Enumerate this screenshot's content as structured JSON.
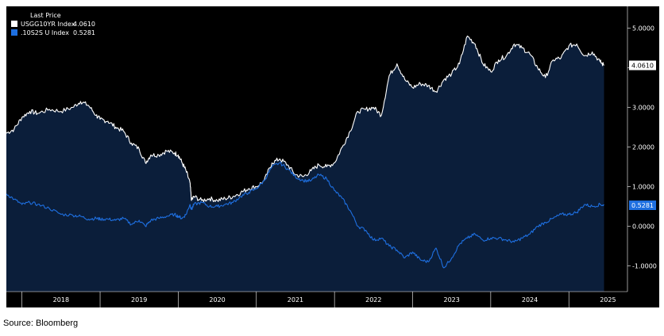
{
  "chart_data": {
    "type": "area",
    "legend_title": "Last Price",
    "legend_position": "top-left",
    "x_ticks": [
      "2018",
      "2019",
      "2020",
      "2021",
      "2022",
      "2023",
      "2024",
      "2025"
    ],
    "x_range": [
      2017.8,
      2025.75
    ],
    "y_ticks": [
      "5.0000",
      "4.0000",
      "3.0000",
      "2.0000",
      "1.0000",
      "0.0000",
      "-1.0000"
    ],
    "y_range": [
      -1.65,
      5.55
    ],
    "colors": {
      "background": "#000000",
      "plot": "#000000",
      "area": "#0b1e3a",
      "axis": "#ffffff"
    },
    "series": [
      {
        "name": "USGG10YR Index",
        "last_value": "4.0610",
        "color": "#ffffff",
        "x": [
          2017.8,
          2017.9,
          2018.0,
          2018.1,
          2018.2,
          2018.35,
          2018.5,
          2018.65,
          2018.75,
          2018.85,
          2018.95,
          2019.0,
          2019.1,
          2019.2,
          2019.3,
          2019.4,
          2019.5,
          2019.58,
          2019.65,
          2019.75,
          2019.85,
          2019.95,
          2020.0,
          2020.05,
          2020.1,
          2020.15,
          2020.17,
          2020.2,
          2020.3,
          2020.4,
          2020.5,
          2020.6,
          2020.7,
          2020.8,
          2020.9,
          2021.0,
          2021.1,
          2021.2,
          2021.3,
          2021.4,
          2021.5,
          2021.6,
          2021.7,
          2021.8,
          2021.9,
          2022.0,
          2022.1,
          2022.2,
          2022.3,
          2022.4,
          2022.5,
          2022.6,
          2022.7,
          2022.8,
          2022.9,
          2023.0,
          2023.1,
          2023.2,
          2023.3,
          2023.4,
          2023.5,
          2023.6,
          2023.7,
          2023.8,
          2023.9,
          2024.0,
          2024.1,
          2024.2,
          2024.3,
          2024.4,
          2024.5,
          2024.6,
          2024.7,
          2024.8,
          2024.9,
          2025.0,
          2025.1,
          2025.2,
          2025.3,
          2025.4,
          2025.45
        ],
        "y": [
          2.35,
          2.45,
          2.75,
          2.9,
          2.85,
          2.95,
          2.9,
          3.0,
          3.15,
          3.05,
          2.8,
          2.7,
          2.65,
          2.5,
          2.4,
          2.1,
          1.95,
          1.6,
          1.8,
          1.8,
          1.9,
          1.85,
          1.8,
          1.6,
          1.4,
          1.1,
          0.65,
          0.75,
          0.65,
          0.7,
          0.65,
          0.7,
          0.75,
          0.85,
          0.95,
          1.0,
          1.15,
          1.6,
          1.7,
          1.55,
          1.3,
          1.25,
          1.4,
          1.55,
          1.5,
          1.6,
          2.0,
          2.4,
          2.9,
          2.95,
          3.0,
          2.8,
          3.8,
          4.1,
          3.7,
          3.5,
          3.6,
          3.55,
          3.4,
          3.7,
          3.85,
          4.1,
          4.8,
          4.6,
          4.1,
          3.9,
          4.2,
          4.3,
          4.6,
          4.5,
          4.35,
          4.0,
          3.75,
          4.2,
          4.25,
          4.55,
          4.6,
          4.3,
          4.4,
          4.15,
          4.06
        ]
      },
      {
        "name": ".10S2S U Index",
        "last_value": "0.5281",
        "color": "#1e6fe0",
        "x": [
          2017.8,
          2017.9,
          2018.0,
          2018.1,
          2018.2,
          2018.35,
          2018.5,
          2018.65,
          2018.75,
          2018.85,
          2018.95,
          2019.0,
          2019.1,
          2019.2,
          2019.3,
          2019.4,
          2019.5,
          2019.58,
          2019.65,
          2019.75,
          2019.85,
          2019.95,
          2020.0,
          2020.05,
          2020.1,
          2020.15,
          2020.17,
          2020.2,
          2020.3,
          2020.4,
          2020.5,
          2020.6,
          2020.7,
          2020.8,
          2020.9,
          2021.0,
          2021.1,
          2021.2,
          2021.3,
          2021.4,
          2021.5,
          2021.6,
          2021.7,
          2021.8,
          2021.9,
          2022.0,
          2022.1,
          2022.2,
          2022.3,
          2022.4,
          2022.5,
          2022.6,
          2022.7,
          2022.8,
          2022.9,
          2023.0,
          2023.1,
          2023.2,
          2023.3,
          2023.4,
          2023.5,
          2023.6,
          2023.7,
          2023.8,
          2023.9,
          2024.0,
          2024.1,
          2024.2,
          2024.3,
          2024.4,
          2024.5,
          2024.6,
          2024.7,
          2024.8,
          2024.9,
          2025.0,
          2025.1,
          2025.2,
          2025.3,
          2025.4,
          2025.45
        ],
        "y": [
          0.82,
          0.68,
          0.55,
          0.6,
          0.55,
          0.45,
          0.3,
          0.28,
          0.25,
          0.18,
          0.2,
          0.18,
          0.18,
          0.15,
          0.2,
          0.05,
          0.15,
          0.0,
          0.15,
          0.2,
          0.25,
          0.3,
          0.25,
          0.2,
          0.3,
          0.55,
          0.42,
          0.55,
          0.6,
          0.5,
          0.5,
          0.55,
          0.6,
          0.75,
          0.85,
          0.95,
          1.15,
          1.5,
          1.6,
          1.45,
          1.25,
          1.15,
          1.15,
          1.3,
          1.2,
          0.9,
          0.7,
          0.4,
          0.0,
          -0.1,
          -0.35,
          -0.3,
          -0.5,
          -0.6,
          -0.8,
          -0.65,
          -0.85,
          -0.9,
          -0.55,
          -1.05,
          -0.8,
          -0.45,
          -0.3,
          -0.2,
          -0.35,
          -0.3,
          -0.3,
          -0.35,
          -0.4,
          -0.3,
          -0.2,
          0.0,
          0.1,
          0.2,
          0.3,
          0.3,
          0.35,
          0.55,
          0.5,
          0.55,
          0.53
        ]
      }
    ]
  },
  "source_text": "Source: Bloomberg"
}
